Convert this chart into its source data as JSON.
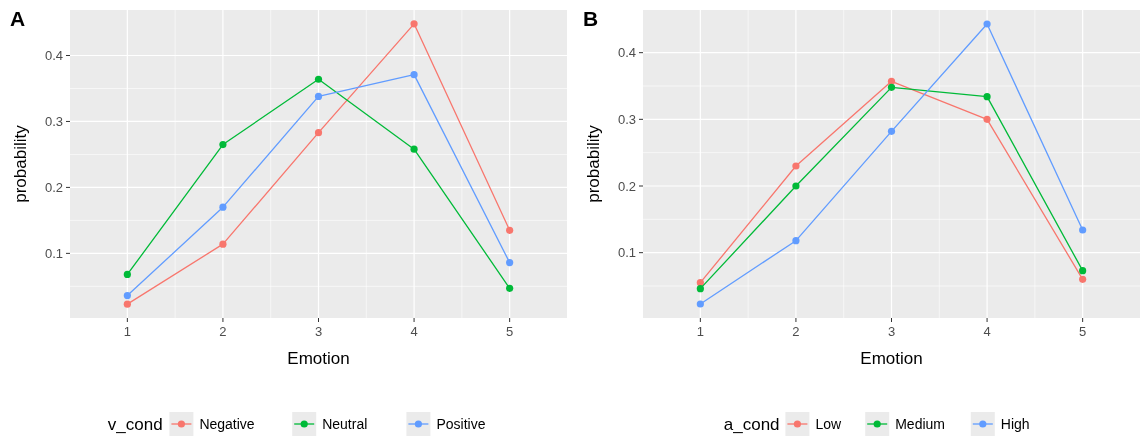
{
  "chart_data": [
    {
      "type": "line",
      "title": "A",
      "xlabel": "Emotion",
      "ylabel": "probability",
      "legend_title": "v_cond",
      "legend": "bottom",
      "grid": true,
      "marker": "circle",
      "line_style": "solid",
      "x": [
        1,
        2,
        3,
        4,
        5
      ],
      "xlim": [
        0.4,
        5.6
      ],
      "xticks": [
        1,
        2,
        3,
        4,
        5
      ],
      "ylim": [
        0.002,
        0.469
      ],
      "yticks": [
        0.1,
        0.2,
        0.3,
        0.4
      ],
      "series": [
        {
          "name": "Negative",
          "color": "#f8766d",
          "values": [
            0.023,
            0.114,
            0.283,
            0.448,
            0.135
          ]
        },
        {
          "name": "Neutral",
          "color": "#00ba38",
          "values": [
            0.068,
            0.265,
            0.364,
            0.258,
            0.047
          ]
        },
        {
          "name": "Positive",
          "color": "#619cff",
          "values": [
            0.036,
            0.17,
            0.338,
            0.371,
            0.086
          ]
        }
      ]
    },
    {
      "type": "line",
      "title": "B",
      "xlabel": "Emotion",
      "ylabel": "probability",
      "legend_title": "a_cond",
      "legend": "bottom",
      "grid": true,
      "marker": "circle",
      "line_style": "solid",
      "x": [
        1,
        2,
        3,
        4,
        5
      ],
      "xlim": [
        0.4,
        5.6
      ],
      "xticks": [
        1,
        2,
        3,
        4,
        5
      ],
      "ylim": [
        0.002,
        0.464
      ],
      "yticks": [
        0.1,
        0.2,
        0.3,
        0.4
      ],
      "series": [
        {
          "name": "Low",
          "color": "#f8766d",
          "values": [
            0.055,
            0.23,
            0.357,
            0.3,
            0.06
          ]
        },
        {
          "name": "Medium",
          "color": "#00ba38",
          "values": [
            0.046,
            0.2,
            0.348,
            0.334,
            0.073
          ]
        },
        {
          "name": "High",
          "color": "#619cff",
          "values": [
            0.023,
            0.118,
            0.282,
            0.443,
            0.134
          ]
        }
      ]
    }
  ]
}
